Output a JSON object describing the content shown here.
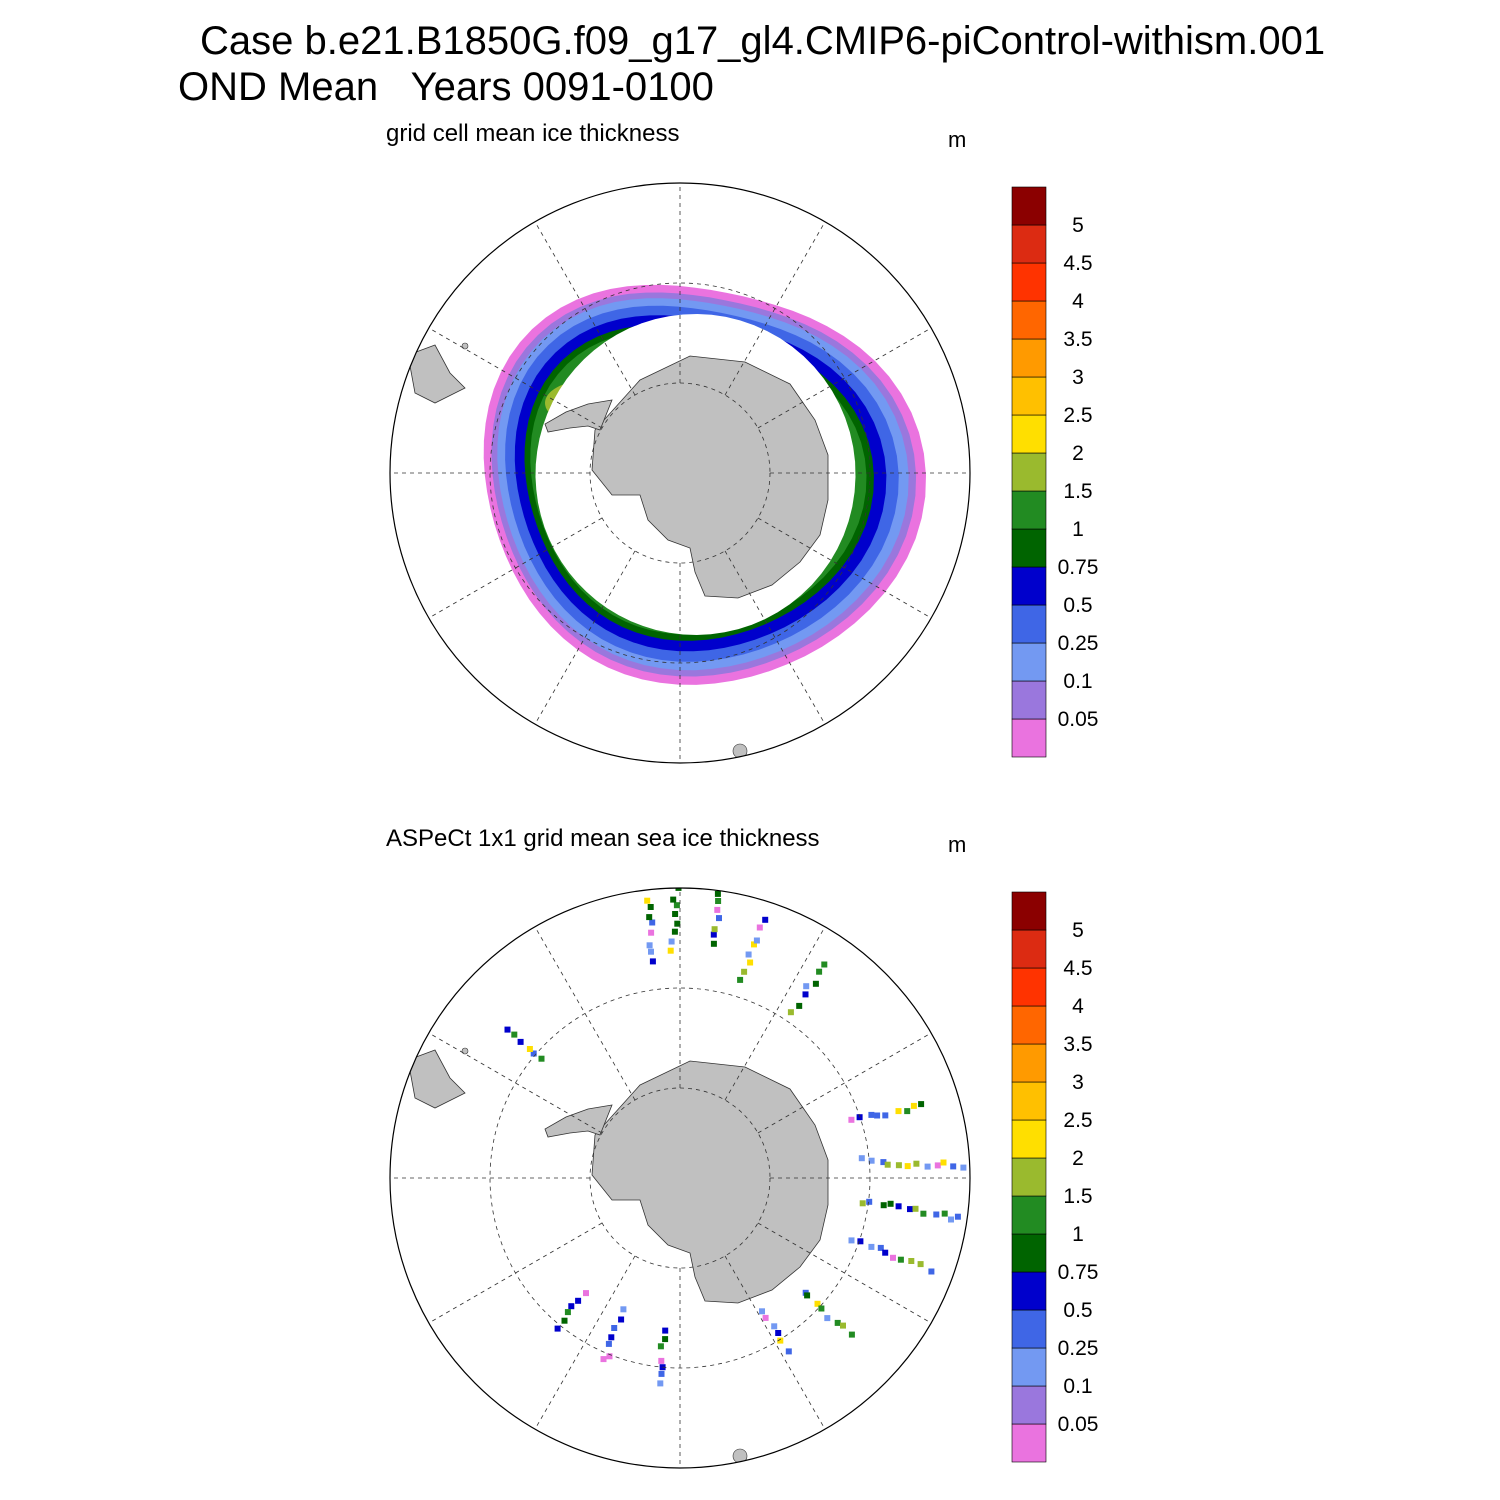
{
  "title": "Case b.e21.B1850G.f09_g17_gl4.CMIP6-piControl-withism.001",
  "subtitle": "OND Mean   Years 0091-0100",
  "colorbar": {
    "colors": [
      "#ea73df",
      "#9a77dd",
      "#7399f2",
      "#3f66e6",
      "#0000cc",
      "#006400",
      "#228b22",
      "#9aba2e",
      "#ffdf00",
      "#ffc000",
      "#ff9a00",
      "#ff6600",
      "#ff3300",
      "#dc2b12",
      "#8b0000"
    ],
    "labels": [
      "0.05",
      "0.1",
      "0.25",
      "0.5",
      "0.75",
      "1",
      "1.5",
      "2",
      "2.5",
      "3",
      "3.5",
      "4",
      "4.5",
      "5"
    ]
  },
  "panels": [
    {
      "title": "grid cell mean ice thickness",
      "units": "m",
      "variant": "model"
    },
    {
      "title": "ASPeCt 1x1 grid mean sea ice thickness",
      "units": "m",
      "variant": "obs"
    }
  ],
  "map": {
    "projection": "south polar stereographic",
    "land_color": "#c0c0c0",
    "ocean_color": "#ffffff",
    "graticule": "dashed"
  }
}
